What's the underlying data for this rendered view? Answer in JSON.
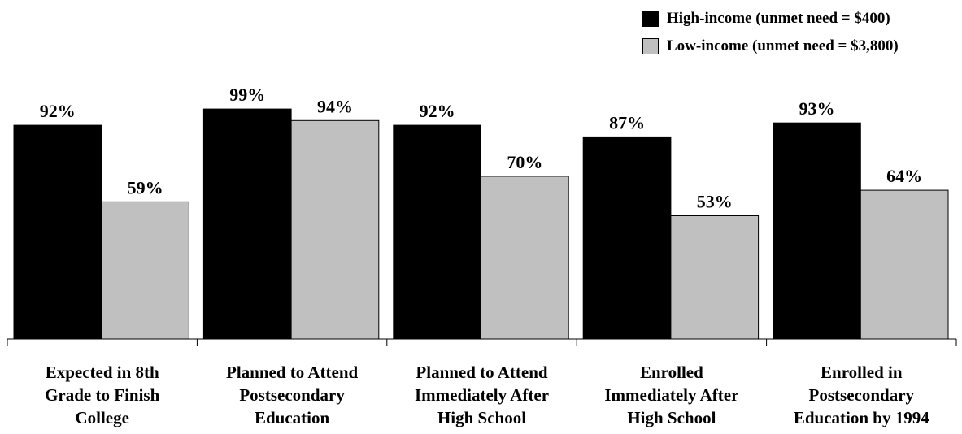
{
  "chart_data": {
    "type": "bar",
    "title": "",
    "xlabel": "",
    "ylabel": "",
    "ylim": [
      0,
      100
    ],
    "grid": false,
    "legend_position": "top-right",
    "categories": [
      [
        "Expected in 8th",
        "Grade to Finish",
        "College"
      ],
      [
        "Planned to Attend",
        "Postsecondary",
        "Education"
      ],
      [
        "Planned to Attend",
        "Immediately After",
        "High School"
      ],
      [
        "Enrolled",
        "Immediately After",
        "High School"
      ],
      [
        "Enrolled in",
        "Postsecondary",
        "Education by 1994"
      ]
    ],
    "series": [
      {
        "name": "High-income (unmet need = $400)",
        "color": "#000000",
        "values": [
          92,
          99,
          92,
          87,
          93
        ],
        "labels": [
          "92%",
          "99%",
          "92%",
          "87%",
          "93%"
        ]
      },
      {
        "name": "Low-income (unmet need = $3,800)",
        "color": "#c0c0c0",
        "values": [
          59,
          94,
          70,
          53,
          64
        ],
        "labels": [
          "59%",
          "94%",
          "70%",
          "53%",
          "64%"
        ]
      }
    ]
  }
}
